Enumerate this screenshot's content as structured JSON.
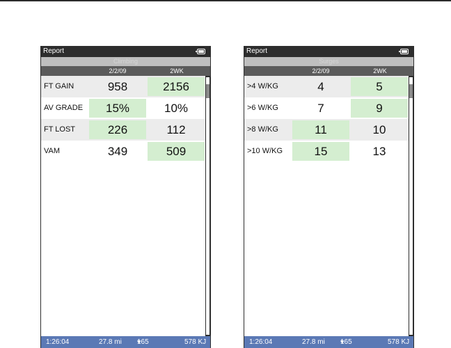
{
  "colors": {
    "highlight": "#d4eed0",
    "status_bar": "#5b79b5",
    "frame": "#2d2d2d",
    "section_bar": "#bfbfbf"
  },
  "screens": [
    {
      "title": "Report",
      "section": "Climbing",
      "columns": [
        "2/2/09",
        "2WK"
      ],
      "rows": [
        {
          "label": "FT GAIN",
          "v1": "958",
          "v2": "2156"
        },
        {
          "label": "AV GRADE",
          "v1": "15%",
          "v2": "10%"
        },
        {
          "label": "FT LOST",
          "v1": "226",
          "v2": "112"
        },
        {
          "label": "VAM",
          "v1": "349",
          "v2": "509"
        }
      ],
      "status": {
        "time": "1:26:04",
        "distance": "27.8 mi",
        "heart_rate": "165",
        "energy": "578  KJ"
      }
    },
    {
      "title": "Report",
      "section": "Surges",
      "columns": [
        "2/2/09",
        "2WK"
      ],
      "rows": [
        {
          "label": ">4 W/KG",
          "v1": "4",
          "v2": "5"
        },
        {
          "label": ">6 W/KG",
          "v1": "7",
          "v2": "9"
        },
        {
          "label": ">8 W/KG",
          "v1": "11",
          "v2": "10"
        },
        {
          "label": ">10 W/KG",
          "v1": "15",
          "v2": "13"
        }
      ],
      "status": {
        "time": "1:26:04",
        "distance": "27.8 mi",
        "heart_rate": "165",
        "energy": "578  KJ"
      }
    }
  ]
}
